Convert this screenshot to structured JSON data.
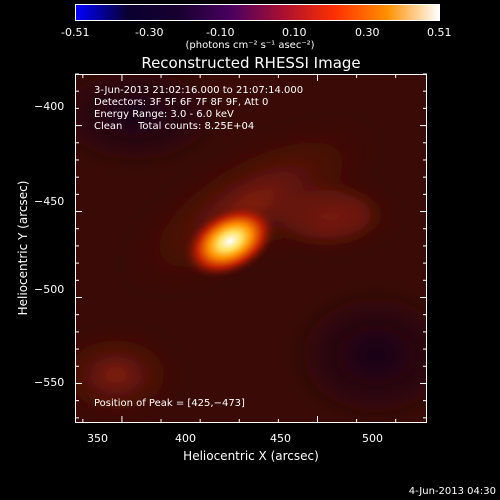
{
  "colorbar": {
    "ticks": [
      "-0.51",
      "-0.30",
      "-0.10",
      "0.10",
      "0.30",
      "0.51"
    ],
    "unit_label": "(photons cm⁻² s⁻¹ asec⁻²)",
    "stops": [
      "#0000ff",
      "#0a0030",
      "#180030",
      "#4a0060",
      "#aa1030",
      "#ff3000",
      "#ff9000",
      "#ffffff"
    ]
  },
  "chart_data": {
    "type": "heatmap",
    "title": "Reconstructed RHESSI Image",
    "xlabel": "Heliocentric X (arcsec)",
    "ylabel": "Heliocentric Y (arcsec)",
    "xlim": [
      338,
      428
    ],
    "ylim": [
      -573,
      -370
    ],
    "x_ticks": [
      "350",
      "400",
      "450",
      "500"
    ],
    "y_ticks": [
      "−400",
      "−450",
      "−500",
      "−550"
    ],
    "peak": [
      425,
      -473
    ],
    "annotations": {
      "time_range": "3-Jun-2013 21:02:16.000 to 21:07:14.000",
      "detectors": "Detectors: 3F 5F 6F 7F 8F 9F, Att 0",
      "energy": "Energy Range: 3.0 - 6.0 keV",
      "method": "Clean",
      "counts": "Total counts: 8.25E+04",
      "peak_text": "Position of Peak = [425,−473]"
    }
  },
  "footer_date": "4-Jun-2013 04:30"
}
